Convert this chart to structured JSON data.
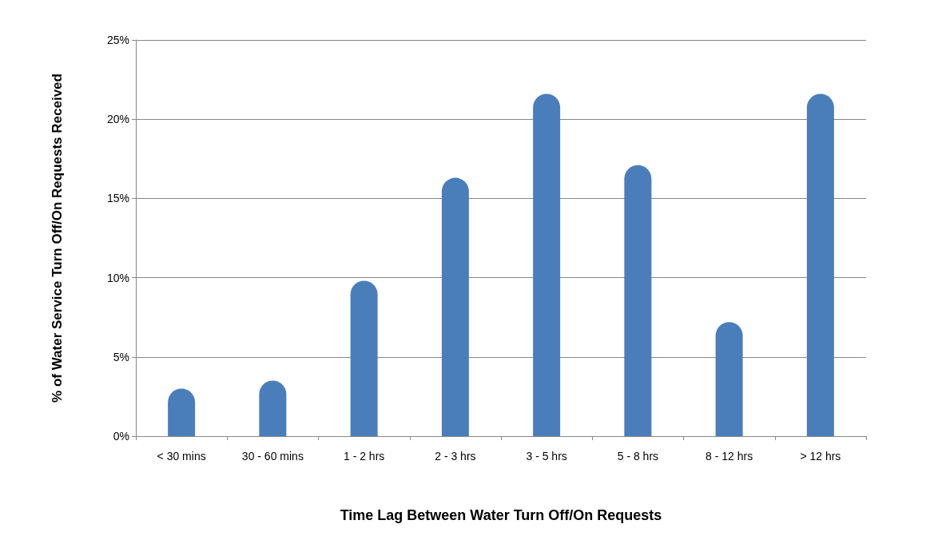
{
  "chart_data": {
    "type": "bar",
    "xlabel": "Time Lag Between Water Turn Off/On Requests",
    "ylabel": "% of Water Service Turn Off/On Requests Received",
    "categories": [
      "< 30 mins",
      "30 - 60 mins",
      "1 - 2 hrs",
      "2 - 3 hrs",
      "3 - 5 hrs",
      "5 - 8 hrs",
      "8 - 12 hrs",
      "> 12 hrs"
    ],
    "values": [
      3.0,
      3.5,
      9.8,
      16.3,
      21.6,
      17.1,
      7.2,
      21.6
    ],
    "color": "#4a7ebb",
    "ylim": [
      0,
      25
    ],
    "yticks": [
      {
        "value": 0,
        "label": "0%"
      },
      {
        "value": 5,
        "label": "5%"
      },
      {
        "value": 10,
        "label": "10%"
      },
      {
        "value": 15,
        "label": "15%"
      },
      {
        "value": 20,
        "label": "20%"
      },
      {
        "value": 25,
        "label": "25%"
      }
    ],
    "grid": "y"
  }
}
